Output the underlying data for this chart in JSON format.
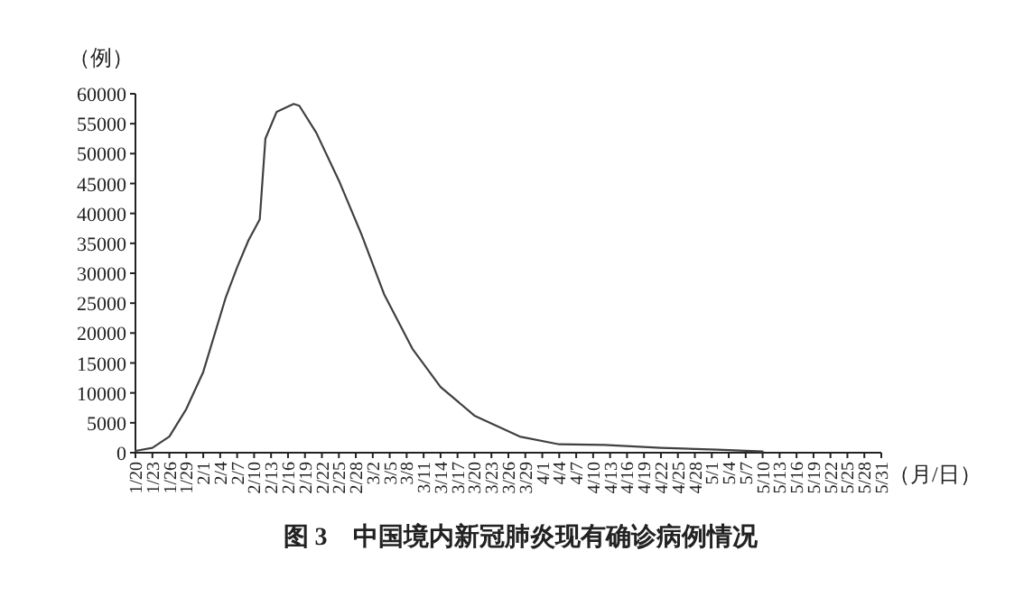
{
  "chart_data": {
    "type": "line",
    "title": "图 3　中国境内新冠肺炎现有确诊病例情况",
    "xlabel": "（月/日）",
    "ylabel": "（例）",
    "color": "#404040",
    "x": [
      "--01-20",
      "--01-23",
      "--01-26",
      "--01-29",
      "--02-01",
      "--02-05",
      "--02-07",
      "--02-09",
      "--02-11",
      "--02-12",
      "--02-14",
      "--02-17",
      "--02-18",
      "--02-21",
      "--02-25",
      "--02-29",
      "--03-04",
      "--03-09",
      "--03-14",
      "--03-20",
      "--03-28",
      "--04-04",
      "--04-12",
      "--04-22",
      "--05-02",
      "--05-10"
    ],
    "values": [
      300,
      800,
      2700,
      7300,
      13500,
      26000,
      31000,
      35500,
      39000,
      52500,
      57000,
      58300,
      58000,
      53500,
      45500,
      36500,
      26500,
      17400,
      11000,
      6200,
      2700,
      1400,
      1300,
      800,
      500,
      200
    ],
    "xlim": [
      "--01-20",
      "--05-31"
    ],
    "ylim": [
      0,
      60000
    ],
    "yticks": [
      0,
      5000,
      10000,
      15000,
      20000,
      25000,
      30000,
      35000,
      40000,
      45000,
      50000,
      55000,
      60000
    ],
    "xticks": [
      {
        "value": "--01-20",
        "label": "1/20"
      },
      {
        "value": "--01-23",
        "label": "1/23"
      },
      {
        "value": "--01-26",
        "label": "1/26"
      },
      {
        "value": "--01-29",
        "label": "1/29"
      },
      {
        "value": "--02-01",
        "label": "2/1"
      },
      {
        "value": "--02-04",
        "label": "2/4"
      },
      {
        "value": "--02-07",
        "label": "2/7"
      },
      {
        "value": "--02-10",
        "label": "2/10"
      },
      {
        "value": "--02-13",
        "label": "2/13"
      },
      {
        "value": "--02-16",
        "label": "2/16"
      },
      {
        "value": "--02-19",
        "label": "2/19"
      },
      {
        "value": "--02-22",
        "label": "2/22"
      },
      {
        "value": "--02-25",
        "label": "2/25"
      },
      {
        "value": "--02-28",
        "label": "2/28"
      },
      {
        "value": "--03-02",
        "label": "3/2"
      },
      {
        "value": "--03-05",
        "label": "3/5"
      },
      {
        "value": "--03-08",
        "label": "3/8"
      },
      {
        "value": "--03-11",
        "label": "3/11"
      },
      {
        "value": "--03-14",
        "label": "3/14"
      },
      {
        "value": "--03-17",
        "label": "3/17"
      },
      {
        "value": "--03-20",
        "label": "3/20"
      },
      {
        "value": "--03-23",
        "label": "3/23"
      },
      {
        "value": "--03-26",
        "label": "3/26"
      },
      {
        "value": "--03-29",
        "label": "3/29"
      },
      {
        "value": "--04-01",
        "label": "4/1"
      },
      {
        "value": "--04-04",
        "label": "4/4"
      },
      {
        "value": "--04-07",
        "label": "4/7"
      },
      {
        "value": "--04-10",
        "label": "4/10"
      },
      {
        "value": "--04-13",
        "label": "4/13"
      },
      {
        "value": "--04-16",
        "label": "4/16"
      },
      {
        "value": "--04-19",
        "label": "4/19"
      },
      {
        "value": "--04-22",
        "label": "4/22"
      },
      {
        "value": "--04-25",
        "label": "4/25"
      },
      {
        "value": "--04-28",
        "label": "4/28"
      },
      {
        "value": "--05-01",
        "label": "5/1"
      },
      {
        "value": "--05-04",
        "label": "5/4"
      },
      {
        "value": "--05-07",
        "label": "5/7"
      },
      {
        "value": "--05-10",
        "label": "5/10"
      },
      {
        "value": "--05-13",
        "label": "5/13"
      },
      {
        "value": "--05-16",
        "label": "5/16"
      },
      {
        "value": "--05-19",
        "label": "5/19"
      },
      {
        "value": "--05-22",
        "label": "5/22"
      },
      {
        "value": "--05-25",
        "label": "5/25"
      },
      {
        "value": "--05-28",
        "label": "5/28"
      },
      {
        "value": "--05-31",
        "label": "5/31"
      }
    ]
  }
}
